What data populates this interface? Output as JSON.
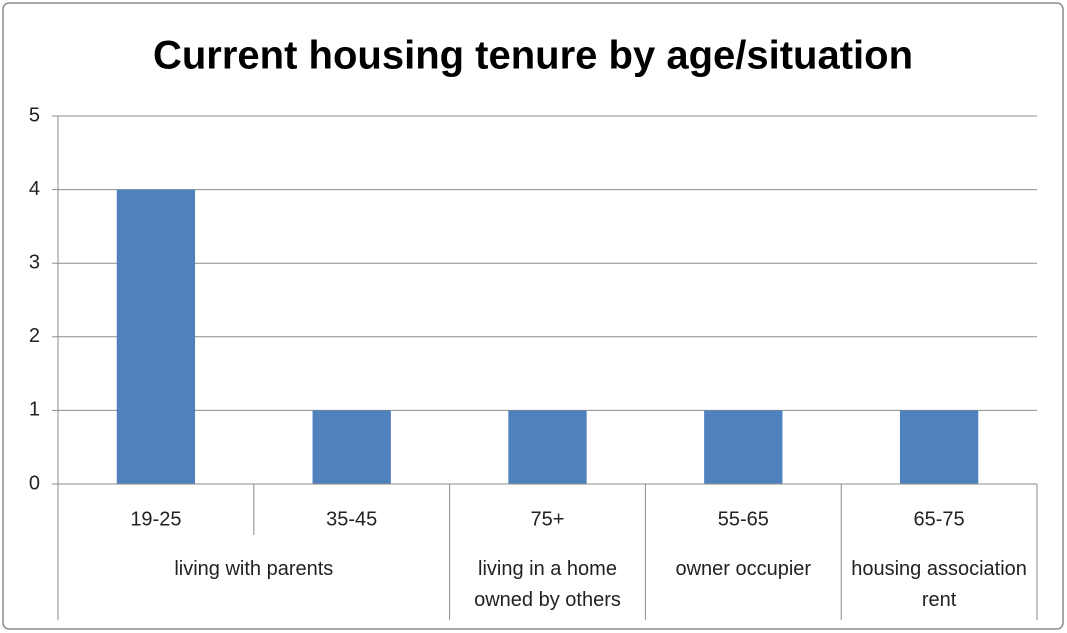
{
  "chart_data": {
    "type": "bar",
    "title": "Current housing tenure by age/situation",
    "groups": [
      {
        "name": "living with parents",
        "categories": [
          "19-25",
          "35-45"
        ],
        "values": [
          4,
          1
        ]
      },
      {
        "name": "living in a home owned by others",
        "categories": [
          "75+"
        ],
        "values": [
          1
        ]
      },
      {
        "name": "owner occupier",
        "categories": [
          "55-65"
        ],
        "values": [
          1
        ]
      },
      {
        "name": "housing association rent",
        "categories": [
          "65-75"
        ],
        "values": [
          1
        ]
      }
    ],
    "color": "#4f81bd",
    "ylim": [
      0,
      5
    ],
    "yticks": [
      0,
      1,
      2,
      3,
      4,
      5
    ],
    "grid": true
  }
}
